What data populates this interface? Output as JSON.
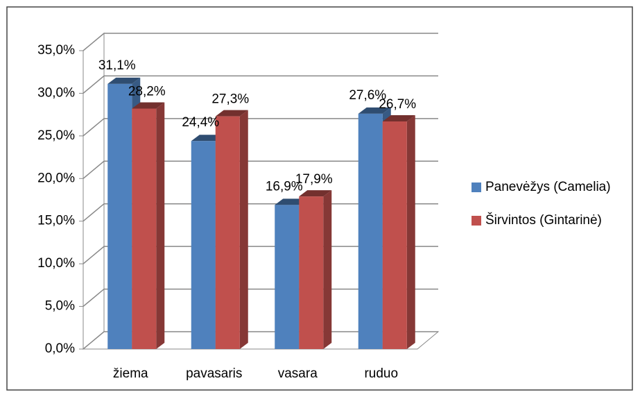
{
  "chart_data": {
    "type": "bar3d",
    "categories": [
      "žiema",
      "pavasaris",
      "vasara",
      "ruduo"
    ],
    "series": [
      {
        "name": "Panevėžys (Camelia)",
        "color": "#4f81bd",
        "values": [
          31.1,
          24.4,
          16.9,
          27.6
        ],
        "value_labels": [
          "31,1%",
          "24,4%",
          "16,9%",
          "27,6%"
        ]
      },
      {
        "name": "Širvintos (Gintarinė)",
        "color": "#c0504d",
        "values": [
          28.2,
          27.3,
          17.9,
          26.7
        ],
        "value_labels": [
          "28,2%",
          "27,3%",
          "17,9%",
          "26,7%"
        ]
      }
    ],
    "ylim": [
      0,
      35
    ],
    "yticks": [
      {
        "value": 0,
        "label": "0,0%"
      },
      {
        "value": 5,
        "label": "5,0%"
      },
      {
        "value": 10,
        "label": "10,0%"
      },
      {
        "value": 15,
        "label": "15,0%"
      },
      {
        "value": 20,
        "label": "20,0%"
      },
      {
        "value": 25,
        "label": "25,0%"
      },
      {
        "value": 30,
        "label": "30,0%"
      },
      {
        "value": 35,
        "label": "35,0%"
      }
    ],
    "grid": true,
    "legend": "right"
  }
}
